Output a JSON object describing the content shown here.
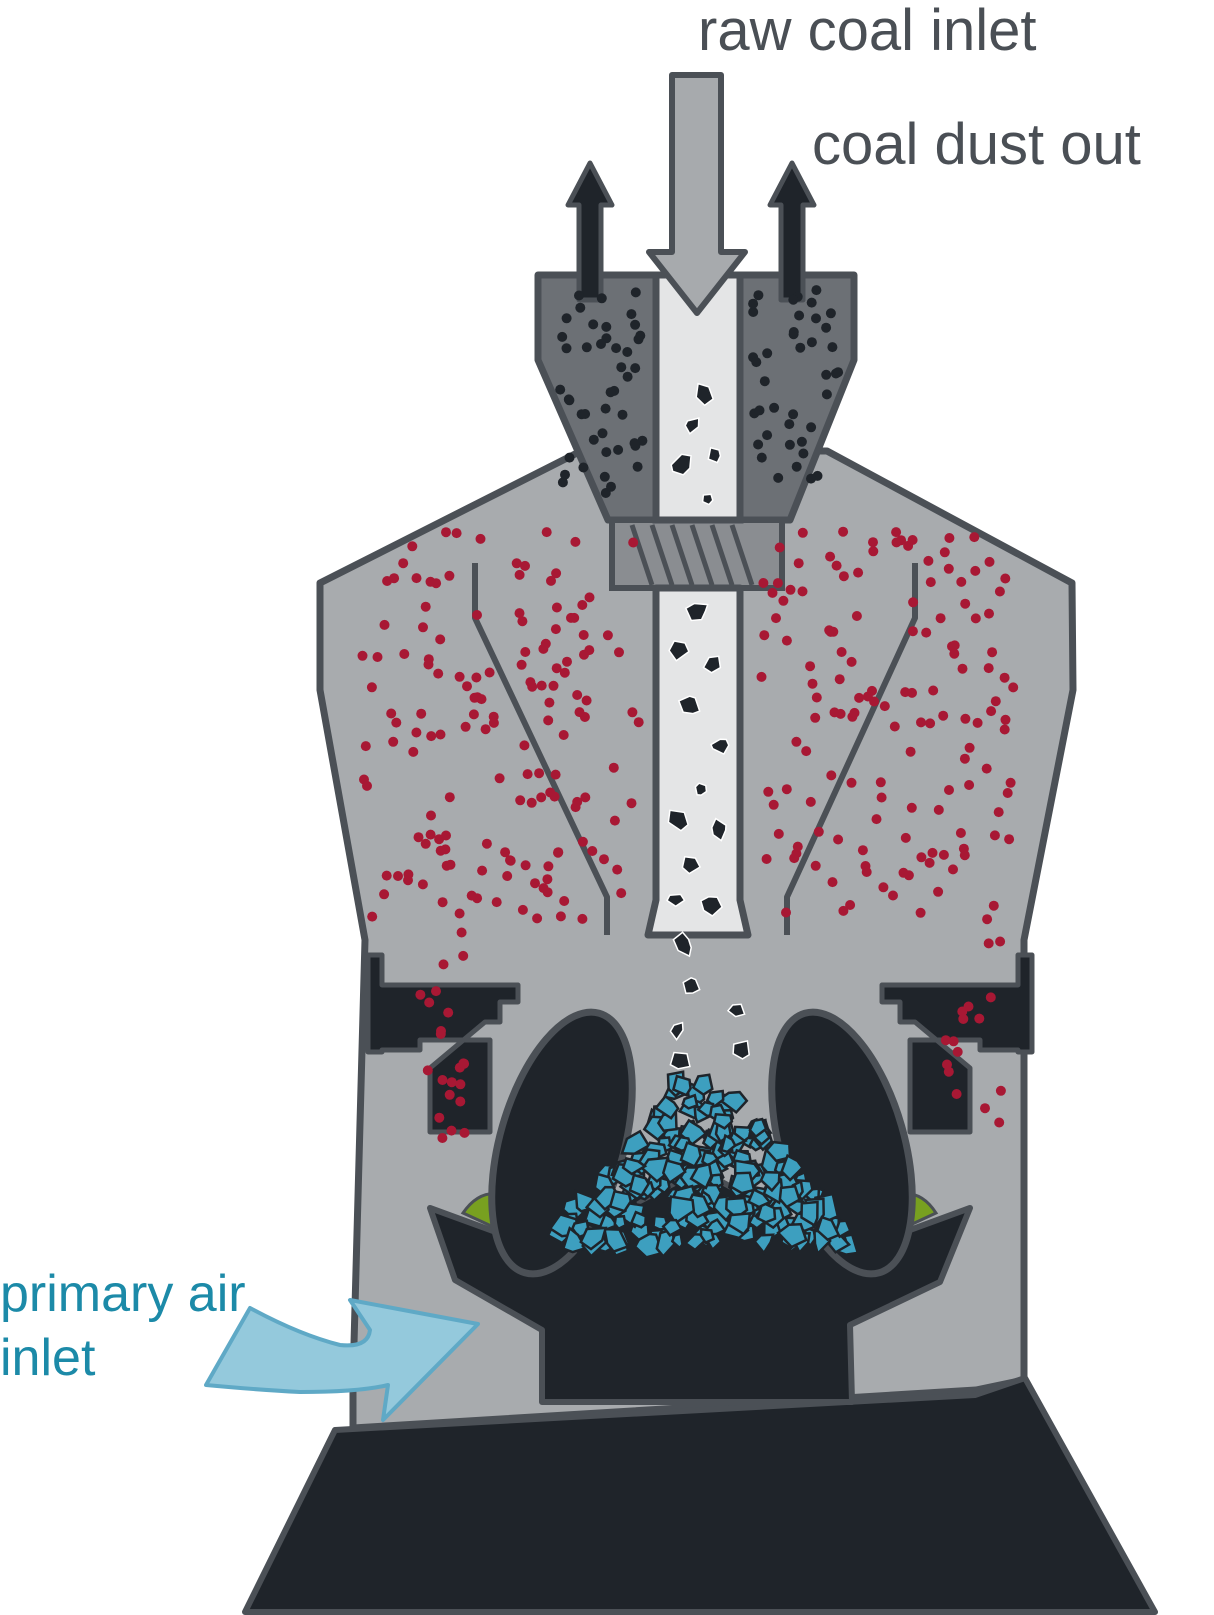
{
  "labels": {
    "raw_coal_inlet": "raw coal inlet",
    "coal_dust_out": "coal dust out",
    "primary_air_inlet_line1": "primary air",
    "primary_air_inlet_line2": "inlet"
  },
  "colors": {
    "housing": "#a8abae",
    "outline": "#4b5056",
    "dark": "#1f242a",
    "feed_tube": "#e4e5e6",
    "inlet_arrow": "#a7aaad",
    "classifier": "#6c7075",
    "dust_particles": "#a81834",
    "ground_coal": "#3d9fbf",
    "air_arrow": "#94c9dc",
    "air_text": "#1c8aa8",
    "label_text": "#4a4f55",
    "green_bed": "#78a020"
  }
}
